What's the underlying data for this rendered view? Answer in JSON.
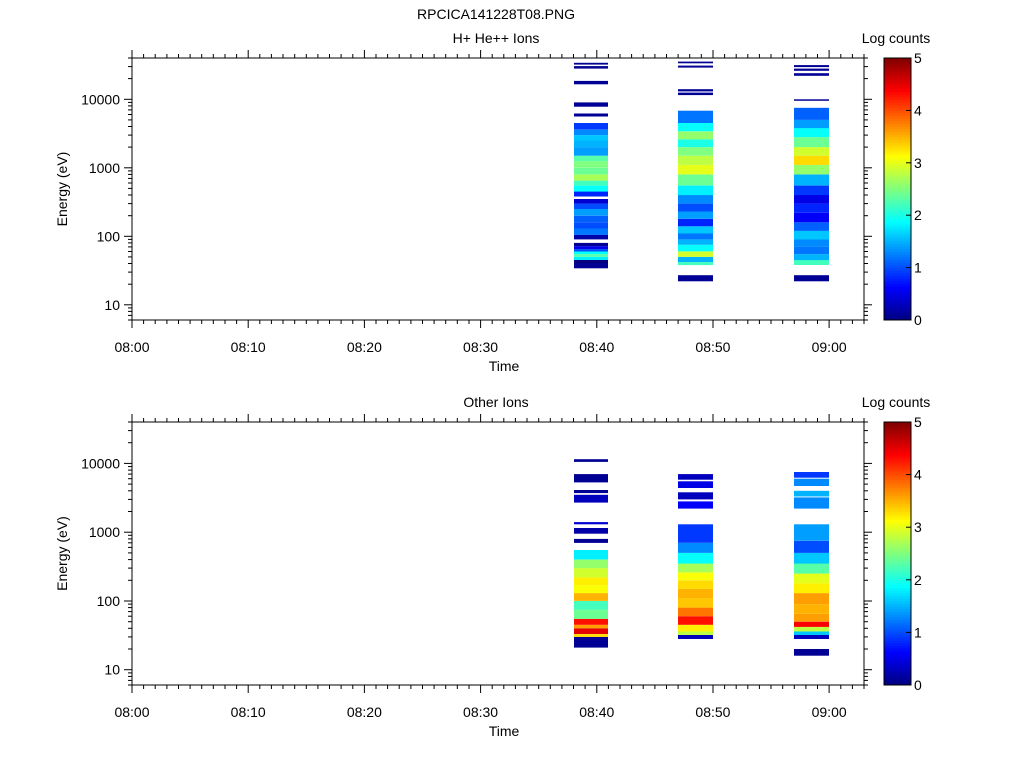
{
  "figure": {
    "title": "RPCICA141228T08.PNG"
  },
  "colors": {
    "axis": "#000000",
    "background": "#ffffff",
    "no_data": "#ffffff"
  },
  "chart_data": [
    {
      "type": "heatmap",
      "title": "H+ He++ Ions",
      "xlabel": "Time",
      "ylabel": "Energy (eV)",
      "x_range": [
        "08:00",
        "09:03"
      ],
      "x_ticks": [
        "08:00",
        "08:10",
        "08:20",
        "08:30",
        "08:40",
        "08:50",
        "09:00"
      ],
      "y_scale": "log",
      "ylim": [
        6,
        40000
      ],
      "y_ticks": [
        "10",
        "100",
        "1000",
        "10000"
      ],
      "colorbar": {
        "label": "Log counts",
        "range": [
          0,
          5
        ],
        "ticks": [
          "0",
          "1",
          "2",
          "3",
          "4",
          "5"
        ],
        "colormap": "jet"
      },
      "columns": [
        {
          "t_start": "08:38",
          "t_end": "08:41",
          "bins": [
            [
              34,
              40,
              0.1
            ],
            [
              40,
              45,
              0
            ],
            [
              45,
              50,
              1.8
            ],
            [
              50,
              55,
              2.3
            ],
            [
              55,
              60,
              1.9
            ],
            [
              60,
              65,
              1.0
            ],
            [
              65,
              72,
              0.5
            ],
            [
              72,
              80,
              0.1
            ],
            [
              90,
              105,
              0.2
            ],
            [
              105,
              130,
              1.2
            ],
            [
              130,
              160,
              1.0
            ],
            [
              160,
              200,
              1.1
            ],
            [
              200,
              250,
              1.4
            ],
            [
              250,
              300,
              1.0
            ],
            [
              300,
              350,
              0.4
            ],
            [
              380,
              450,
              0.8
            ],
            [
              450,
              550,
              1.9
            ],
            [
              550,
              650,
              2.2
            ],
            [
              650,
              800,
              2.7
            ],
            [
              800,
              1000,
              2.4
            ],
            [
              1000,
              1250,
              2.5
            ],
            [
              1250,
              1500,
              2.3
            ],
            [
              1500,
              2000,
              1.4
            ],
            [
              2000,
              2500,
              1.5
            ],
            [
              2500,
              3000,
              1.6
            ],
            [
              3000,
              3600,
              1.3
            ],
            [
              3600,
              4500,
              0.9
            ],
            [
              5600,
              6200,
              0.1
            ],
            [
              7800,
              9000,
              0.1
            ],
            [
              16500,
              18500,
              0.1
            ],
            [
              28000,
              30500,
              0.1
            ],
            [
              32000,
              34000,
              0.1
            ]
          ]
        },
        {
          "t_start": "08:47",
          "t_end": "08:50",
          "bins": [
            [
              22,
              27,
              0.1
            ],
            [
              38,
              42,
              2.2
            ],
            [
              42,
              50,
              1.5
            ],
            [
              50,
              60,
              2.9
            ],
            [
              60,
              75,
              1.9
            ],
            [
              75,
              90,
              1.5
            ],
            [
              90,
              110,
              1.2
            ],
            [
              110,
              140,
              1.6
            ],
            [
              140,
              180,
              0.8
            ],
            [
              180,
              230,
              1.4
            ],
            [
              230,
              300,
              1.0
            ],
            [
              300,
              400,
              1.3
            ],
            [
              400,
              550,
              1.8
            ],
            [
              550,
              800,
              2.4
            ],
            [
              800,
              1100,
              3.0
            ],
            [
              1100,
              1500,
              2.8
            ],
            [
              1500,
              2000,
              2.5
            ],
            [
              2000,
              2600,
              2.0
            ],
            [
              2600,
              3400,
              2.6
            ],
            [
              3400,
              4500,
              1.9
            ],
            [
              4500,
              6800,
              1.2
            ],
            [
              11500,
              12500,
              0.1
            ],
            [
              13000,
              14000,
              0.1
            ],
            [
              29000,
              31000,
              0.1
            ],
            [
              33500,
              35500,
              0.1
            ]
          ]
        },
        {
          "t_start": "08:57",
          "t_end": "09:00",
          "bins": [
            [
              22,
              27,
              0.1
            ],
            [
              38,
              45,
              2.2
            ],
            [
              45,
              55,
              1.5
            ],
            [
              55,
              70,
              1.2
            ],
            [
              70,
              90,
              1.3
            ],
            [
              90,
              120,
              1.6
            ],
            [
              120,
              160,
              1.1
            ],
            [
              160,
              220,
              0.6
            ],
            [
              220,
              300,
              0.8
            ],
            [
              300,
              400,
              0.5
            ],
            [
              400,
              550,
              0.9
            ],
            [
              550,
              800,
              1.5
            ],
            [
              800,
              1100,
              2.6
            ],
            [
              1100,
              1500,
              3.3
            ],
            [
              1500,
              2000,
              2.9
            ],
            [
              2000,
              2800,
              2.4
            ],
            [
              2800,
              3800,
              1.9
            ],
            [
              3800,
              5000,
              1.4
            ],
            [
              5000,
              7500,
              1.1
            ],
            [
              9500,
              10000,
              0.1
            ],
            [
              22000,
              24000,
              0.1
            ],
            [
              26000,
              28000,
              0.1
            ],
            [
              29500,
              31500,
              0.1
            ]
          ]
        }
      ]
    },
    {
      "type": "heatmap",
      "title": "Other Ions",
      "xlabel": "Time",
      "ylabel": "Energy (eV)",
      "x_range": [
        "08:00",
        "09:03"
      ],
      "x_ticks": [
        "08:00",
        "08:10",
        "08:20",
        "08:30",
        "08:40",
        "08:50",
        "09:00"
      ],
      "y_scale": "log",
      "ylim": [
        6,
        40000
      ],
      "y_ticks": [
        "10",
        "100",
        "1000",
        "10000"
      ],
      "colorbar": {
        "label": "Log counts",
        "range": [
          0,
          5
        ],
        "ticks": [
          "0",
          "1",
          "2",
          "3",
          "4",
          "5"
        ],
        "colormap": "jet"
      },
      "columns": [
        {
          "t_start": "08:38",
          "t_end": "08:41",
          "bins": [
            [
              21,
              30,
              0.1
            ],
            [
              30,
              33,
              3.3
            ],
            [
              33,
              40,
              4.5
            ],
            [
              40,
              45,
              3.6
            ],
            [
              45,
              55,
              4.3
            ],
            [
              55,
              75,
              2.4
            ],
            [
              75,
              100,
              2.2
            ],
            [
              100,
              130,
              3.5
            ],
            [
              130,
              170,
              3.1
            ],
            [
              170,
              220,
              3.2
            ],
            [
              220,
              300,
              2.9
            ],
            [
              300,
              400,
              2.6
            ],
            [
              400,
              550,
              1.8
            ],
            [
              700,
              800,
              0.1
            ],
            [
              950,
              1150,
              0.2
            ],
            [
              1300,
              1400,
              0.4
            ],
            [
              2700,
              3500,
              0.3
            ],
            [
              3700,
              4100,
              0.1
            ],
            [
              5300,
              7000,
              0.1
            ],
            [
              10500,
              11500,
              0.1
            ]
          ]
        },
        {
          "t_start": "08:47",
          "t_end": "08:50",
          "bins": [
            [
              28,
              32,
              0.3
            ],
            [
              32,
              36,
              2.8
            ],
            [
              36,
              45,
              3.2
            ],
            [
              45,
              60,
              4.3
            ],
            [
              60,
              80,
              3.8
            ],
            [
              80,
              110,
              3.4
            ],
            [
              110,
              150,
              3.5
            ],
            [
              150,
              200,
              3.3
            ],
            [
              200,
              260,
              3.1
            ],
            [
              260,
              350,
              2.7
            ],
            [
              350,
              500,
              1.9
            ],
            [
              500,
              700,
              1.3
            ],
            [
              700,
              1300,
              0.9
            ],
            [
              2200,
              2800,
              0.6
            ],
            [
              3000,
              3800,
              0.3
            ],
            [
              4400,
              5500,
              0.5
            ],
            [
              5800,
              7000,
              0.3
            ]
          ]
        },
        {
          "t_start": "08:57",
          "t_end": "09:00",
          "bins": [
            [
              16,
              20,
              0.1
            ],
            [
              28,
              32,
              0.3
            ],
            [
              32,
              36,
              1.6
            ],
            [
              36,
              42,
              2.8
            ],
            [
              42,
              50,
              4.4
            ],
            [
              50,
              65,
              3.6
            ],
            [
              65,
              90,
              3.5
            ],
            [
              90,
              130,
              3.6
            ],
            [
              130,
              180,
              3.2
            ],
            [
              180,
              250,
              3.0
            ],
            [
              250,
              350,
              2.3
            ],
            [
              350,
              500,
              1.6
            ],
            [
              500,
              750,
              1.0
            ],
            [
              750,
              1300,
              1.4
            ],
            [
              2200,
              3200,
              1.3
            ],
            [
              3300,
              4000,
              1.5
            ],
            [
              4700,
              6000,
              1.3
            ],
            [
              6200,
              7500,
              0.9
            ]
          ]
        }
      ]
    }
  ]
}
